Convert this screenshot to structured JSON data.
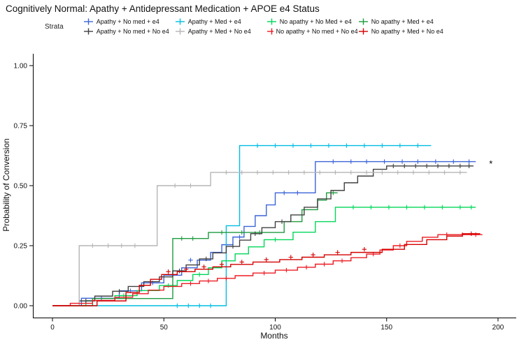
{
  "chart_data": {
    "type": "line",
    "subtype": "kaplan-meier-step",
    "title": "Cognitively Normal: Apathy + Antidepressant Medication + APOE e4 Status",
    "legend_title": "Strata",
    "xlabel": "Months",
    "ylabel": "Probability of Conversion",
    "xlim": [
      -8,
      208
    ],
    "ylim": [
      -0.03,
      1.05
    ],
    "xticks": [
      0,
      50,
      100,
      150,
      200
    ],
    "yticks": [
      "0.00",
      "0.25",
      "0.50",
      "0.75",
      "1.00"
    ],
    "grid": false,
    "legend_position": "top",
    "end_annotation": {
      "text": "*",
      "x": 196,
      "y": 0.59
    },
    "series": [
      {
        "name": "Apathy + No med + e4",
        "color": "#3b64d8",
        "points": [
          [
            0,
            0
          ],
          [
            13,
            0.031
          ],
          [
            30,
            0.062
          ],
          [
            40,
            0.095
          ],
          [
            50,
            0.127
          ],
          [
            58,
            0.158
          ],
          [
            65,
            0.19
          ],
          [
            71,
            0.222
          ],
          [
            76,
            0.254
          ],
          [
            81,
            0.286
          ],
          [
            86,
            0.33
          ],
          [
            91,
            0.375
          ],
          [
            96,
            0.42
          ],
          [
            100,
            0.47
          ],
          [
            118,
            0.6
          ],
          [
            190,
            0.6
          ]
        ],
        "censors": [
          [
            22,
            0.031
          ],
          [
            35,
            0.062
          ],
          [
            45,
            0.095
          ],
          [
            62,
            0.19
          ],
          [
            84,
            0.286
          ],
          [
            104,
            0.47
          ],
          [
            110,
            0.47
          ],
          [
            126,
            0.6
          ],
          [
            134,
            0.6
          ],
          [
            141,
            0.6
          ],
          [
            149,
            0.6
          ],
          [
            157,
            0.6
          ],
          [
            164,
            0.6
          ],
          [
            172,
            0.6
          ],
          [
            180,
            0.6
          ],
          [
            187,
            0.6
          ]
        ]
      },
      {
        "name": "Apathy + Med + e4",
        "color": "#00bde3",
        "points": [
          [
            0,
            0
          ],
          [
            78,
            0.333
          ],
          [
            84,
            0.667
          ],
          [
            170,
            0.667
          ]
        ],
        "censors": [
          [
            56,
            0
          ],
          [
            61,
            0
          ],
          [
            66,
            0
          ],
          [
            71,
            0
          ],
          [
            92,
            0.667
          ],
          [
            100,
            0.667
          ],
          [
            108,
            0.667
          ],
          [
            116,
            0.667
          ],
          [
            124,
            0.667
          ],
          [
            132,
            0.667
          ],
          [
            140,
            0.667
          ],
          [
            148,
            0.667
          ],
          [
            156,
            0.667
          ],
          [
            164,
            0.667
          ]
        ]
      },
      {
        "name": "No apathy  + No Med + e4",
        "color": "#00d757",
        "points": [
          [
            0,
            0
          ],
          [
            15,
            0.021
          ],
          [
            28,
            0.042
          ],
          [
            38,
            0.063
          ],
          [
            48,
            0.084
          ],
          [
            56,
            0.105
          ],
          [
            63,
            0.13
          ],
          [
            70,
            0.158
          ],
          [
            76,
            0.187
          ],
          [
            82,
            0.216
          ],
          [
            88,
            0.245
          ],
          [
            95,
            0.275
          ],
          [
            108,
            0.306
          ],
          [
            118,
            0.35
          ],
          [
            127,
            0.41
          ],
          [
            190,
            0.41
          ]
        ],
        "censors": [
          [
            32,
            0.042
          ],
          [
            52,
            0.084
          ],
          [
            66,
            0.13
          ],
          [
            100,
            0.275
          ],
          [
            135,
            0.41
          ],
          [
            143,
            0.41
          ],
          [
            151,
            0.41
          ],
          [
            159,
            0.41
          ],
          [
            167,
            0.41
          ],
          [
            175,
            0.41
          ],
          [
            183,
            0.41
          ],
          [
            188,
            0.41
          ]
        ]
      },
      {
        "name": "No apathy + Med + e4",
        "color": "#1e9b3e",
        "points": [
          [
            0,
            0
          ],
          [
            18,
            0.03
          ],
          [
            54,
            0.28
          ],
          [
            70,
            0.305
          ],
          [
            104,
            0.35
          ],
          [
            112,
            0.4
          ],
          [
            119,
            0.44
          ],
          [
            123,
            0.47
          ],
          [
            128,
            0.47
          ]
        ],
        "censors": [
          [
            58,
            0.28
          ],
          [
            63,
            0.28
          ],
          [
            76,
            0.305
          ],
          [
            85,
            0.305
          ],
          [
            93,
            0.305
          ],
          [
            126,
            0.47
          ]
        ]
      },
      {
        "name": "Apathy + No med + No e4",
        "color": "#404040",
        "points": [
          [
            0,
            0
          ],
          [
            12,
            0.02
          ],
          [
            19,
            0.04
          ],
          [
            27,
            0.06
          ],
          [
            34,
            0.08
          ],
          [
            41,
            0.1
          ],
          [
            48,
            0.12
          ],
          [
            54,
            0.145
          ],
          [
            60,
            0.17
          ],
          [
            66,
            0.195
          ],
          [
            72,
            0.22
          ],
          [
            78,
            0.247
          ],
          [
            84,
            0.273
          ],
          [
            89,
            0.3
          ],
          [
            94,
            0.325
          ],
          [
            100,
            0.35
          ],
          [
            107,
            0.378
          ],
          [
            113,
            0.41
          ],
          [
            119,
            0.445
          ],
          [
            125,
            0.48
          ],
          [
            131,
            0.512
          ],
          [
            137,
            0.54
          ],
          [
            144,
            0.568
          ],
          [
            150,
            0.582
          ],
          [
            189,
            0.582
          ]
        ],
        "censors": [
          [
            15,
            0.02
          ],
          [
            30,
            0.06
          ],
          [
            44,
            0.1
          ],
          [
            57,
            0.145
          ],
          [
            69,
            0.195
          ],
          [
            81,
            0.247
          ],
          [
            91,
            0.3
          ],
          [
            103,
            0.35
          ],
          [
            153,
            0.582
          ],
          [
            158,
            0.582
          ],
          [
            163,
            0.582
          ],
          [
            168,
            0.582
          ],
          [
            173,
            0.582
          ],
          [
            178,
            0.582
          ],
          [
            183,
            0.582
          ],
          [
            187,
            0.582
          ]
        ]
      },
      {
        "name": "Apathy + Med + No e4",
        "color": "#b5b5b5",
        "points": [
          [
            0,
            0
          ],
          [
            12,
            0.25
          ],
          [
            47,
            0.5
          ],
          [
            71,
            0.555
          ],
          [
            186,
            0.555
          ]
        ],
        "censors": [
          [
            18,
            0.25
          ],
          [
            25,
            0.25
          ],
          [
            31,
            0.25
          ],
          [
            37,
            0.25
          ],
          [
            55,
            0.5
          ],
          [
            62,
            0.5
          ],
          [
            78,
            0.555
          ],
          [
            85,
            0.555
          ],
          [
            92,
            0.555
          ],
          [
            99,
            0.555
          ],
          [
            106,
            0.555
          ],
          [
            113,
            0.555
          ],
          [
            120,
            0.555
          ],
          [
            127,
            0.555
          ],
          [
            134,
            0.555
          ],
          [
            141,
            0.555
          ],
          [
            148,
            0.555
          ],
          [
            155,
            0.555
          ],
          [
            162,
            0.555
          ],
          [
            169,
            0.555
          ],
          [
            176,
            0.555
          ],
          [
            183,
            0.555
          ]
        ]
      },
      {
        "name": "No apathy + No med + No e4",
        "color": "#ed1c24",
        "points": [
          [
            0,
            0
          ],
          [
            8,
            0.01
          ],
          [
            18,
            0.022
          ],
          [
            28,
            0.035
          ],
          [
            36,
            0.05
          ],
          [
            43,
            0.065
          ],
          [
            50,
            0.08
          ],
          [
            58,
            0.092
          ],
          [
            66,
            0.103
          ],
          [
            74,
            0.114
          ],
          [
            82,
            0.125
          ],
          [
            90,
            0.136
          ],
          [
            100,
            0.148
          ],
          [
            110,
            0.16
          ],
          [
            118,
            0.173
          ],
          [
            126,
            0.187
          ],
          [
            134,
            0.2
          ],
          [
            141,
            0.215
          ],
          [
            147,
            0.232
          ],
          [
            153,
            0.25
          ],
          [
            159,
            0.268
          ],
          [
            166,
            0.285
          ],
          [
            173,
            0.296
          ],
          [
            193,
            0.296
          ]
        ],
        "censors": [
          [
            62,
            0.092
          ],
          [
            70,
            0.103
          ],
          [
            78,
            0.114
          ],
          [
            95,
            0.136
          ],
          [
            105,
            0.148
          ],
          [
            114,
            0.16
          ],
          [
            122,
            0.173
          ],
          [
            130,
            0.187
          ],
          [
            144,
            0.215
          ],
          [
            156,
            0.25
          ],
          [
            177,
            0.296
          ],
          [
            184,
            0.296
          ],
          [
            190,
            0.296
          ]
        ]
      },
      {
        "name": "No apathy + Med + No e4",
        "color": "#d40000",
        "points": [
          [
            0,
            0
          ],
          [
            20,
            0.02
          ],
          [
            33,
            0.055
          ],
          [
            39,
            0.085
          ],
          [
            44,
            0.11
          ],
          [
            49,
            0.13
          ],
          [
            56,
            0.142
          ],
          [
            64,
            0.152
          ],
          [
            72,
            0.162
          ],
          [
            80,
            0.172
          ],
          [
            90,
            0.182
          ],
          [
            102,
            0.192
          ],
          [
            112,
            0.202
          ],
          [
            122,
            0.212
          ],
          [
            134,
            0.222
          ],
          [
            148,
            0.235
          ],
          [
            158,
            0.255
          ],
          [
            168,
            0.275
          ],
          [
            177,
            0.29
          ],
          [
            184,
            0.3
          ],
          [
            192,
            0.3
          ]
        ],
        "censors": [
          [
            52,
            0.142
          ],
          [
            60,
            0.152
          ],
          [
            68,
            0.162
          ],
          [
            76,
            0.172
          ],
          [
            85,
            0.182
          ],
          [
            96,
            0.192
          ],
          [
            107,
            0.202
          ],
          [
            117,
            0.212
          ],
          [
            128,
            0.222
          ],
          [
            140,
            0.235
          ],
          [
            188,
            0.3
          ]
        ]
      }
    ]
  }
}
